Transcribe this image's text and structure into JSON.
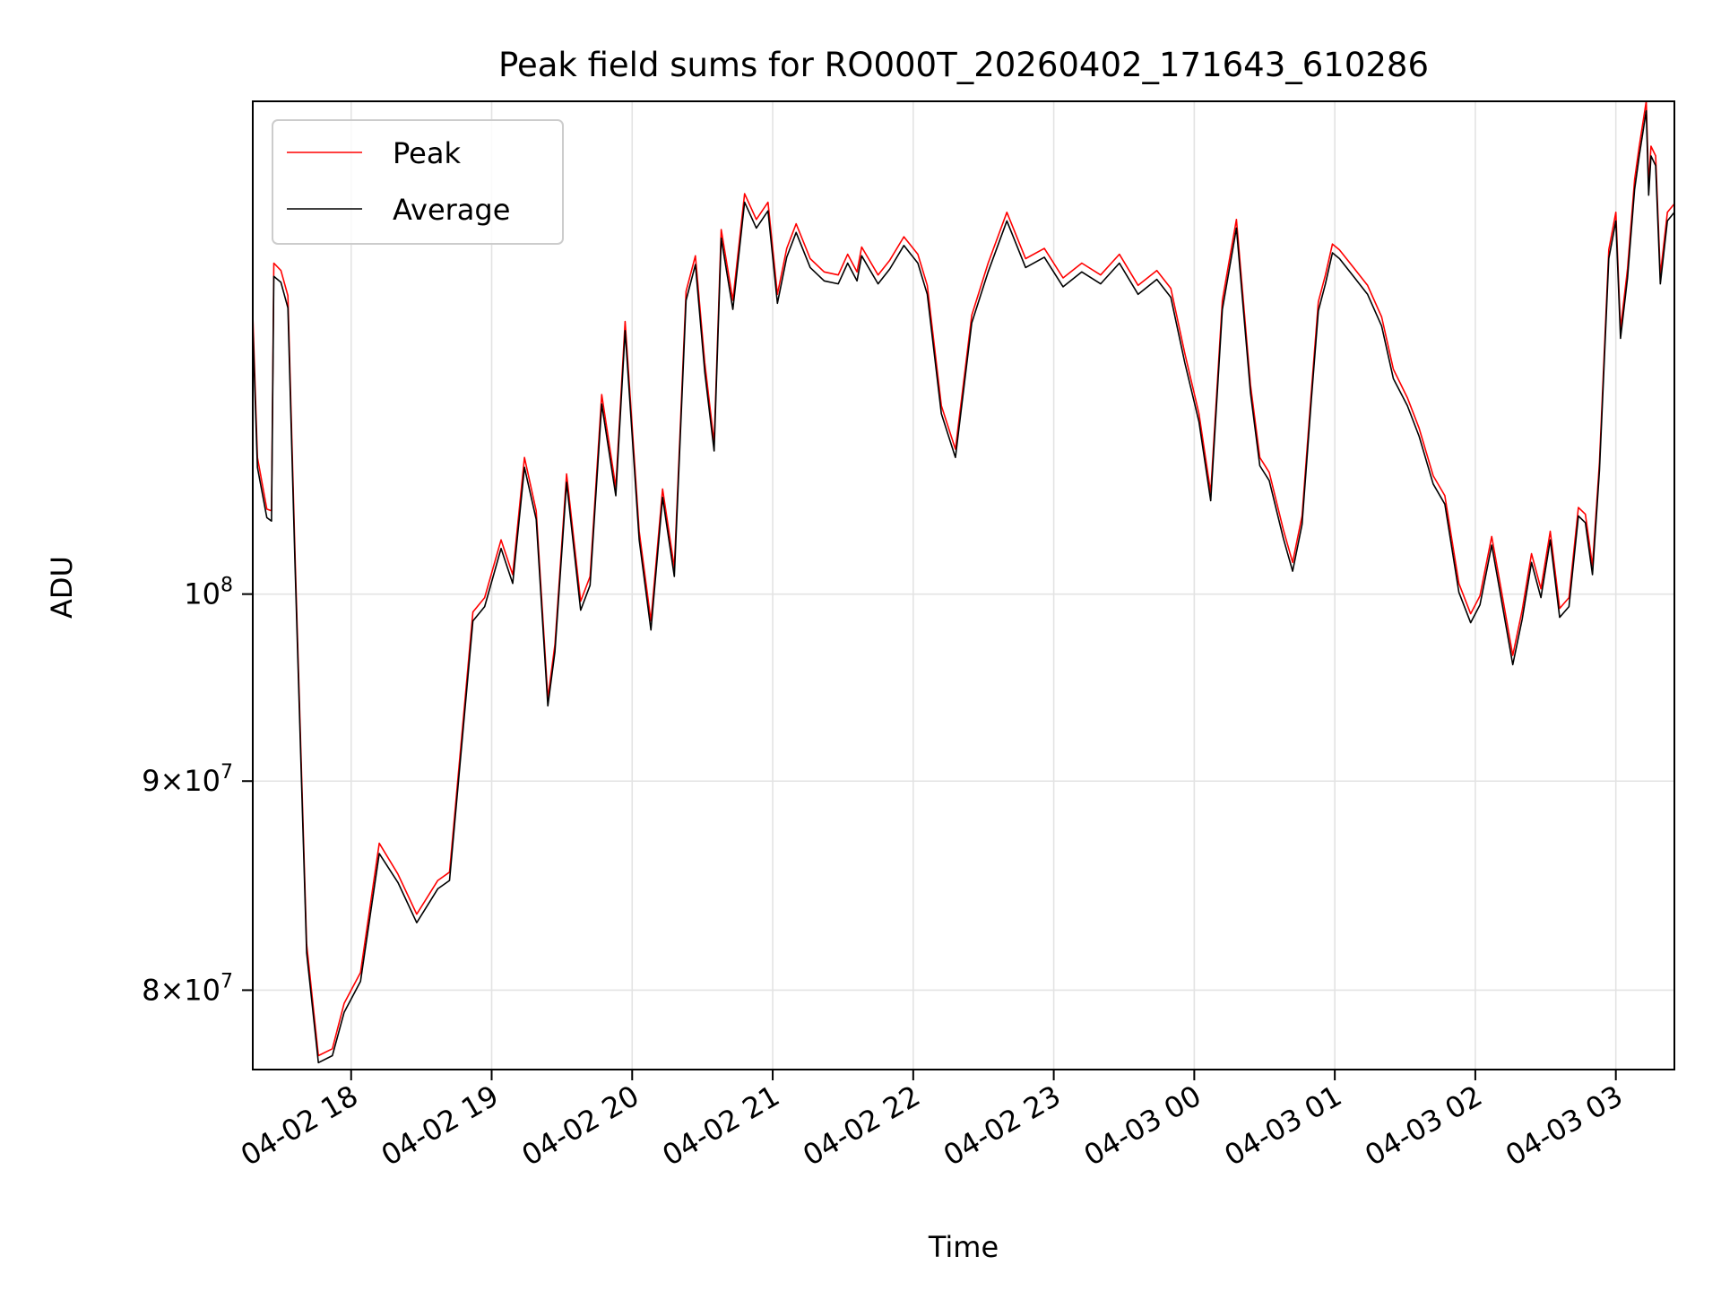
{
  "chart_data": {
    "type": "line",
    "title": "Peak field sums for RO000T_20260402_171643_610286",
    "xlabel": "Time",
    "ylabel": "ADU",
    "yscale": "log",
    "grid": true,
    "legend_position": "upper left",
    "xlim": [
      "2026-04-02 17:18",
      "2026-04-03 03:25"
    ],
    "ylim": [
      76500000,
      132000000
    ],
    "x_ticks": [
      "04-02 18",
      "04-02 19",
      "04-02 20",
      "04-02 21",
      "04-02 22",
      "04-02 23",
      "04-03 00",
      "04-03 01",
      "04-03 02",
      "04-03 03"
    ],
    "x_tick_times": [
      "2026-04-02 18:00",
      "2026-04-02 19:00",
      "2026-04-02 20:00",
      "2026-04-02 21:00",
      "2026-04-02 22:00",
      "2026-04-02 23:00",
      "2026-04-03 00:00",
      "2026-04-03 01:00",
      "2026-04-03 02:00",
      "2026-04-03 03:00"
    ],
    "y_ticks": [
      {
        "value": 80000000,
        "mantissa": "8",
        "exp": "7"
      },
      {
        "value": 90000000,
        "mantissa": "9",
        "exp": "7"
      },
      {
        "value": 100000000,
        "mantissa": "",
        "exp": "8"
      }
    ],
    "x": [
      "2026-04-02 17:18",
      "2026-04-02 17:20",
      "2026-04-02 17:24",
      "2026-04-02 17:26",
      "2026-04-02 17:27",
      "2026-04-02 17:30",
      "2026-04-02 17:33",
      "2026-04-02 17:36",
      "2026-04-02 17:41",
      "2026-04-02 17:46",
      "2026-04-02 17:52",
      "2026-04-02 17:57",
      "2026-04-02 18:04",
      "2026-04-02 18:12",
      "2026-04-02 18:20",
      "2026-04-02 18:28",
      "2026-04-02 18:37",
      "2026-04-02 18:42",
      "2026-04-02 18:52",
      "2026-04-02 18:57",
      "2026-04-02 19:04",
      "2026-04-02 19:09",
      "2026-04-02 19:14",
      "2026-04-02 19:19",
      "2026-04-02 19:24",
      "2026-04-02 19:27",
      "2026-04-02 19:32",
      "2026-04-02 19:38",
      "2026-04-02 19:42",
      "2026-04-02 19:47",
      "2026-04-02 19:53",
      "2026-04-02 19:57",
      "2026-04-02 20:03",
      "2026-04-02 20:08",
      "2026-04-02 20:13",
      "2026-04-02 20:18",
      "2026-04-02 20:23",
      "2026-04-02 20:27",
      "2026-04-02 20:31",
      "2026-04-02 20:35",
      "2026-04-02 20:38",
      "2026-04-02 20:43",
      "2026-04-02 20:48",
      "2026-04-02 20:53",
      "2026-04-02 20:58",
      "2026-04-02 21:02",
      "2026-04-02 21:06",
      "2026-04-02 21:10",
      "2026-04-02 21:16",
      "2026-04-02 21:22",
      "2026-04-02 21:28",
      "2026-04-02 21:32",
      "2026-04-02 21:36",
      "2026-04-02 21:38",
      "2026-04-02 21:45",
      "2026-04-02 21:50",
      "2026-04-02 21:56",
      "2026-04-02 22:02",
      "2026-04-02 22:06",
      "2026-04-02 22:12",
      "2026-04-02 22:18",
      "2026-04-02 22:25",
      "2026-04-02 22:32",
      "2026-04-02 22:40",
      "2026-04-02 22:48",
      "2026-04-02 22:56",
      "2026-04-02 23:04",
      "2026-04-02 23:12",
      "2026-04-02 23:20",
      "2026-04-02 23:28",
      "2026-04-02 23:36",
      "2026-04-02 23:44",
      "2026-04-02 23:50",
      "2026-04-02 23:56",
      "2026-04-03 00:02",
      "2026-04-03 00:07",
      "2026-04-03 00:12",
      "2026-04-03 00:18",
      "2026-04-03 00:24",
      "2026-04-03 00:28",
      "2026-04-03 00:32",
      "2026-04-03 00:38",
      "2026-04-03 00:42",
      "2026-04-03 00:46",
      "2026-04-03 00:50",
      "2026-04-03 00:53",
      "2026-04-03 00:56",
      "2026-04-03 00:59",
      "2026-04-03 01:02",
      "2026-04-03 01:08",
      "2026-04-03 01:14",
      "2026-04-03 01:20",
      "2026-04-03 01:25",
      "2026-04-03 01:31",
      "2026-04-03 01:36",
      "2026-04-03 01:42",
      "2026-04-03 01:47",
      "2026-04-03 01:53",
      "2026-04-03 01:58",
      "2026-04-03 02:02",
      "2026-04-03 02:07",
      "2026-04-03 02:11",
      "2026-04-03 02:16",
      "2026-04-03 02:20",
      "2026-04-03 02:24",
      "2026-04-03 02:28",
      "2026-04-03 02:32",
      "2026-04-03 02:36",
      "2026-04-03 02:40",
      "2026-04-03 02:44",
      "2026-04-03 02:47",
      "2026-04-03 02:50",
      "2026-04-03 02:53",
      "2026-04-03 02:57",
      "2026-04-03 03:00",
      "2026-04-03 03:02",
      "2026-04-03 03:05",
      "2026-04-03 03:08",
      "2026-04-03 03:10",
      "2026-04-03 03:12",
      "2026-04-03 03:13",
      "2026-04-03 03:14",
      "2026-04-03 03:15",
      "2026-04-03 03:17",
      "2026-04-03 03:19",
      "2026-04-03 03:22",
      "2026-04-03 03:25"
    ],
    "series": [
      {
        "name": "Peak",
        "color": "#ff0000",
        "values": [
          117100000,
          108000000,
          104900000,
          104800000,
          120500000,
          120000000,
          118300000,
          102500000,
          82100000,
          77100000,
          77400000,
          79400000,
          80800000,
          86900000,
          85400000,
          83500000,
          85100000,
          85500000,
          99000000,
          99800000,
          103100000,
          101100000,
          108000000,
          104800000,
          94300000,
          97200000,
          107000000,
          99600000,
          101000000,
          111900000,
          106200000,
          116600000,
          103600000,
          98500000,
          106100000,
          101500000,
          118600000,
          121000000,
          113900000,
          108900000,
          122800000,
          118000000,
          125300000,
          123500000,
          124700000,
          118400000,
          121500000,
          123200000,
          120800000,
          119900000,
          119700000,
          121100000,
          119900000,
          121600000,
          119700000,
          120700000,
          122300000,
          121100000,
          119000000,
          111200000,
          108500000,
          117000000,
          120500000,
          124000000,
          120800000,
          121500000,
          119500000,
          120500000,
          119700000,
          121100000,
          119000000,
          120000000,
          118800000,
          114500000,
          110700000,
          105900000,
          118000000,
          123500000,
          112500000,
          108000000,
          107100000,
          103700000,
          101800000,
          104500000,
          112100000,
          117900000,
          119700000,
          121800000,
          121400000,
          120200000,
          119000000,
          116900000,
          113500000,
          111700000,
          109800000,
          106900000,
          105700000,
          100600000,
          98900000,
          99900000,
          103300000,
          100300000,
          96600000,
          99100000,
          102300000,
          100300000,
          103600000,
          99200000,
          99800000,
          105000000,
          104600000,
          101600000,
          107700000,
          121400000,
          124000000,
          116100000,
          120100000,
          126300000,
          128700000,
          130900000,
          132000000,
          125900000,
          128700000,
          128000000,
          119700000,
          124000000,
          124600000
        ]
      },
      {
        "name": "Average",
        "color": "#000000",
        "values": [
          116300000,
          107400000,
          104400000,
          104200000,
          119600000,
          119200000,
          117500000,
          101900000,
          81700000,
          76800000,
          77100000,
          79000000,
          80400000,
          86400000,
          85000000,
          83100000,
          84700000,
          85100000,
          98500000,
          99300000,
          102600000,
          100600000,
          107400000,
          104300000,
          93900000,
          96800000,
          106500000,
          99100000,
          100500000,
          111300000,
          105700000,
          116000000,
          103100000,
          98000000,
          105600000,
          101000000,
          118000000,
          120400000,
          113300000,
          108400000,
          122200000,
          117400000,
          124700000,
          122900000,
          124100000,
          117800000,
          120900000,
          122600000,
          120200000,
          119300000,
          119100000,
          120500000,
          119300000,
          121000000,
          119100000,
          120100000,
          121700000,
          120500000,
          118400000,
          110700000,
          108000000,
          116500000,
          119900000,
          123400000,
          120200000,
          120900000,
          118900000,
          119900000,
          119100000,
          120500000,
          118400000,
          119400000,
          118200000,
          113900000,
          110200000,
          105400000,
          117400000,
          122900000,
          112000000,
          107500000,
          106600000,
          103200000,
          101300000,
          104000000,
          111600000,
          117300000,
          119100000,
          121200000,
          120800000,
          119600000,
          118400000,
          116300000,
          112900000,
          111200000,
          109300000,
          106400000,
          105200000,
          100100000,
          98400000,
          99400000,
          102800000,
          99800000,
          96100000,
          98600000,
          101800000,
          99800000,
          103100000,
          98700000,
          99300000,
          104500000,
          104100000,
          101100000,
          107200000,
          120800000,
          123400000,
          115500000,
          119500000,
          125600000,
          128000000,
          130200000,
          131300000,
          125200000,
          128000000,
          127300000,
          119100000,
          123400000,
          124000000
        ]
      }
    ]
  }
}
